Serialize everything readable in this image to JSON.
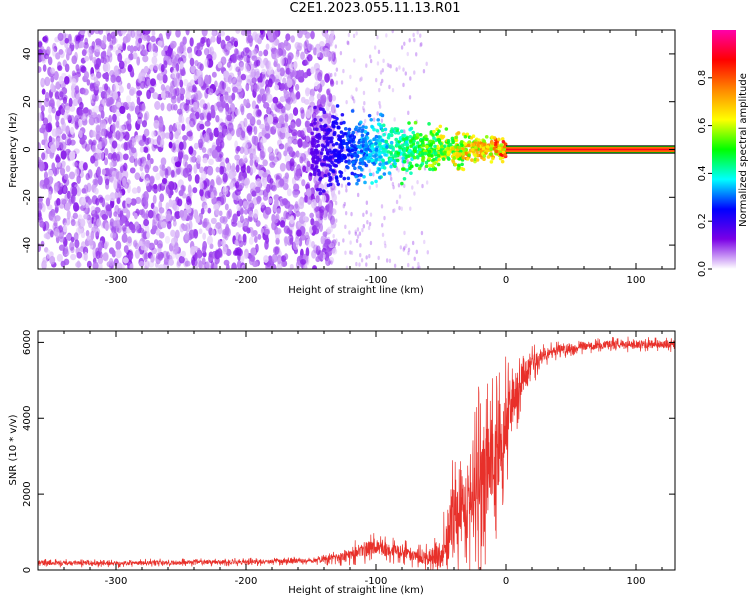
{
  "title": "C2E1.2023.055.11.13.R01",
  "chart_data": [
    {
      "type": "heatmap",
      "xlabel": "Height of straight line (km)",
      "ylabel": "Frequency (Hz)",
      "xlim": [
        -360,
        130
      ],
      "ylim": [
        -50,
        50
      ],
      "x_ticks": [
        -300,
        -200,
        -100,
        0,
        100
      ],
      "y_ticks": [
        -40,
        -20,
        0,
        20,
        40
      ],
      "colorbar": {
        "label": "Normalized spectral amplitude",
        "range": [
          0,
          1
        ],
        "ticks": [
          "0.0",
          "0.2",
          "0.4",
          "0.6",
          "0.8"
        ],
        "colormap": [
          "#ffffff",
          "#7a00e6",
          "#0000ff",
          "#00ffff",
          "#00ff00",
          "#ffff00",
          "#ff8800",
          "#ff0000",
          "#ff00aa"
        ]
      },
      "features": [
        {
          "name": "noise",
          "x_range": [
            -360,
            -140
          ],
          "freq_range": [
            -50,
            50
          ],
          "amplitude": [
            0.02,
            0.12
          ]
        },
        {
          "name": "sparse",
          "x_range": [
            -140,
            -60
          ],
          "freq_range": [
            -50,
            50
          ],
          "amplitude": [
            0.0,
            0.06
          ]
        },
        {
          "name": "echo",
          "x_range": [
            -150,
            0
          ],
          "center_freq": 0,
          "freq_halfwidth_at_start": 10,
          "amplitude_start": 0.15,
          "amplitude_end": 0.85
        },
        {
          "name": "carrier",
          "x_range": [
            0,
            130
          ],
          "center_freq": 0,
          "freq_halfwidth": 1.5,
          "amplitude": 0.9
        }
      ]
    },
    {
      "type": "line",
      "xlabel": "Height of straight line (km)",
      "ylabel": "SNR (10 * v/v)",
      "xlim": [
        -360,
        130
      ],
      "ylim": [
        0,
        6300
      ],
      "x_ticks": [
        -300,
        -200,
        -100,
        0,
        100
      ],
      "y_ticks": [
        0,
        2000,
        4000,
        6000
      ],
      "color": "#e8302a",
      "series": [
        {
          "x": [
            -360,
            -300,
            -250,
            -200,
            -150,
            -130,
            -115,
            -100,
            -90,
            -80,
            -70,
            -60,
            -50,
            -45,
            -40,
            -35,
            -30,
            -25,
            -20,
            -15,
            -10,
            -5,
            0,
            5,
            10,
            15,
            20,
            25,
            30,
            35,
            40,
            50,
            60,
            80,
            100,
            130
          ],
          "y": [
            180,
            180,
            200,
            210,
            250,
            320,
            480,
            620,
            520,
            450,
            400,
            320,
            380,
            900,
            1300,
            1600,
            1800,
            2100,
            2300,
            2700,
            2900,
            3300,
            3900,
            4500,
            4900,
            5200,
            5400,
            5550,
            5650,
            5750,
            5800,
            5850,
            5900,
            5950,
            5950,
            5950
          ],
          "noise_amplitude": [
            80,
            80,
            80,
            80,
            80,
            150,
            250,
            300,
            250,
            250,
            250,
            300,
            500,
            900,
            1300,
            1600,
            1700,
            1800,
            2000,
            2000,
            1800,
            1500,
            1300,
            900,
            700,
            500,
            400,
            300,
            250,
            200,
            180,
            160,
            150,
            150,
            150,
            150
          ]
        }
      ]
    }
  ]
}
